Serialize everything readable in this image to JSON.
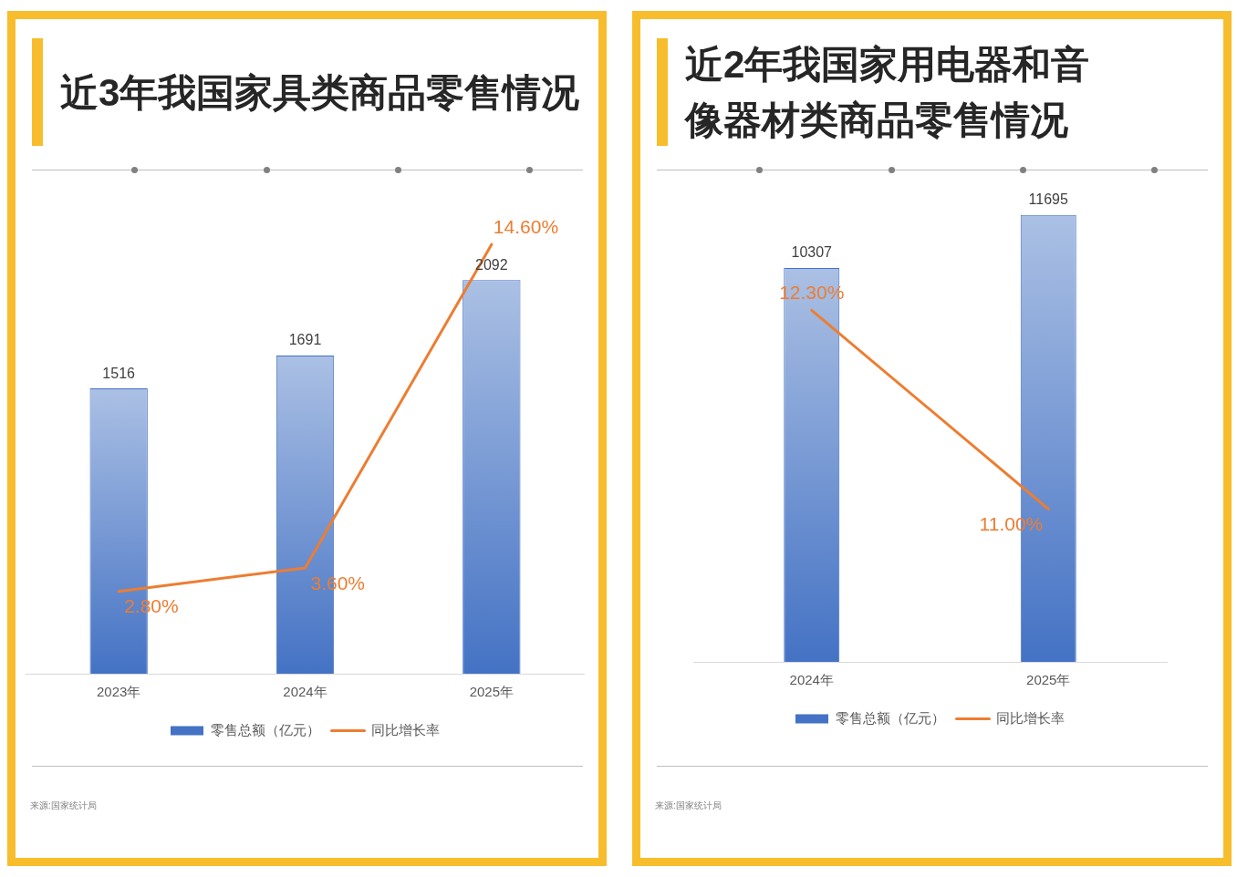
{
  "chart_data": [
    {
      "type": "bar",
      "title": "近3年我国家具类商品零售情况",
      "categories": [
        "2023年",
        "2024年",
        "2025年"
      ],
      "series": [
        {
          "name": "零售总额（亿元）",
          "color": "#4472c4",
          "values": [
            1516,
            1691,
            2092
          ],
          "value_labels": [
            "1516",
            "1691",
            "2092"
          ]
        },
        {
          "name": "同比增长率",
          "type": "line",
          "axis": "y2",
          "color": "#ed7d31",
          "values": [
            2.8,
            3.6,
            14.6
          ],
          "value_labels": [
            "2.80%",
            "3.60%",
            "14.60%"
          ]
        }
      ],
      "tick_labels": "x",
      "legend": "bottom",
      "annotations": [
        "来源:国家统计局"
      ]
    },
    {
      "type": "bar",
      "title": "近2年我国家用电器和音像器材类商品零售情况",
      "categories": [
        "2024年",
        "2025年"
      ],
      "series": [
        {
          "name": "零售总额（亿元）",
          "color": "#4472c4",
          "values": [
            10307,
            11695
          ],
          "value_labels": [
            "10307",
            "11695"
          ]
        },
        {
          "name": "同比增长率",
          "type": "line",
          "axis": "y2",
          "color": "#ed7d31",
          "values": [
            12.3,
            11.0
          ],
          "value_labels": [
            "12.30%",
            "11.00%"
          ]
        }
      ],
      "tick_labels": "x",
      "legend": "bottom",
      "annotations": [
        "来源:国家统计局"
      ]
    }
  ]
}
